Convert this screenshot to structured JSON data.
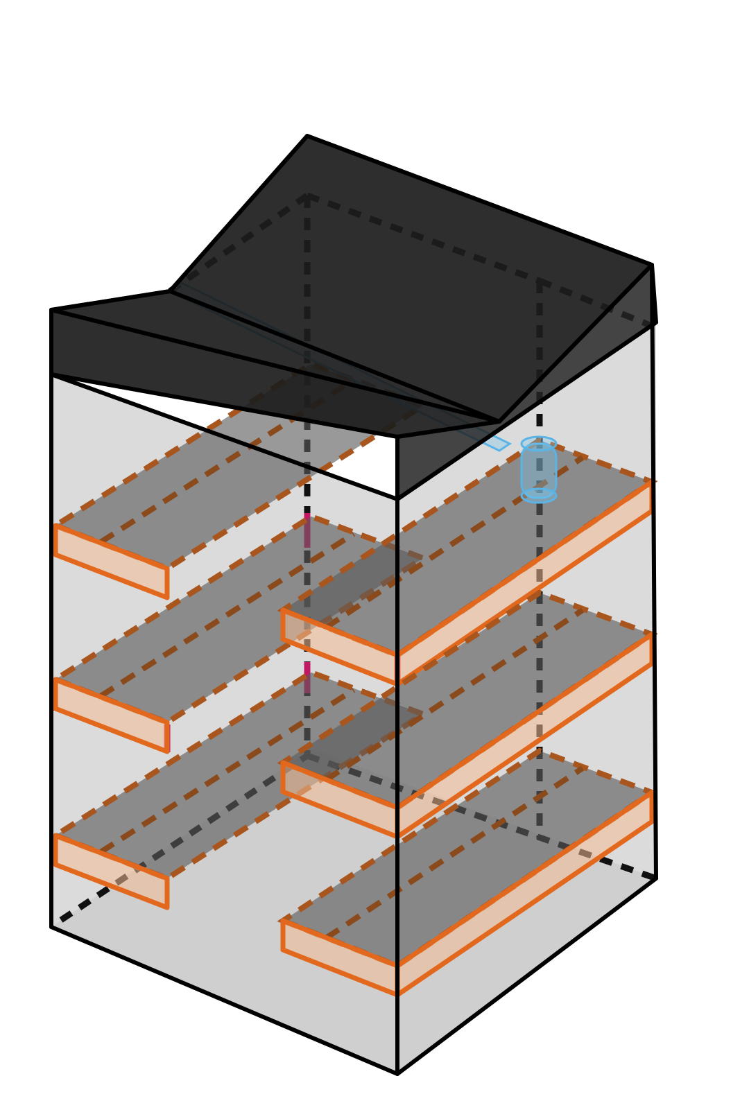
{
  "diagram": {
    "colors": {
      "outline": "#000000",
      "roof": "#1c1c1c",
      "wall": "#aaaaaa",
      "floor": "#e1e1e1",
      "ramp_edge": "#e2681e",
      "ramp_fill": "#f4be96",
      "ramp_top": "#5a5a5a",
      "marker": "#c21763",
      "skylight": "#5ab4e6"
    }
  }
}
